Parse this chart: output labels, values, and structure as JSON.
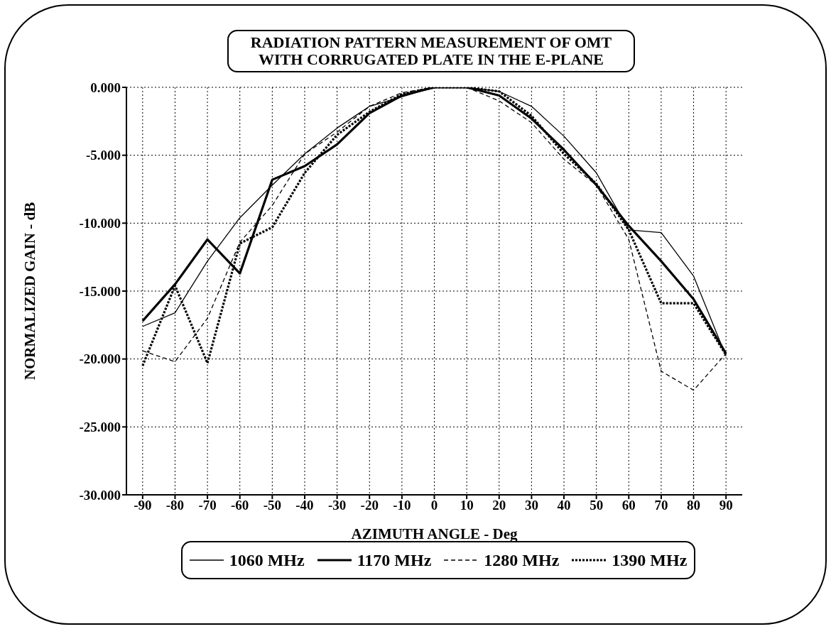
{
  "chart_data": {
    "type": "line",
    "title": "RADIATION PATTERN MEASUREMENT OF OMT\nWITH CORRUGATED PLATE IN THE E-PLANE",
    "xlabel": "AZIMUTH ANGLE - Deg",
    "ylabel": "NORMALIZED GAIN - dB",
    "x": [
      -90,
      -80,
      -70,
      -60,
      -50,
      -40,
      -30,
      -20,
      -10,
      0,
      10,
      20,
      30,
      40,
      50,
      60,
      70,
      80,
      90
    ],
    "series": [
      {
        "name": "1060 MHz",
        "color": "#000000",
        "line_style": "solid",
        "values": [
          -17.6,
          -16.6,
          -12.8,
          -9.6,
          -7.2,
          -4.9,
          -3.0,
          -1.4,
          -0.7,
          0,
          0,
          -0.3,
          -1.4,
          -3.6,
          -6.3,
          -10.5,
          -10.7,
          -13.9,
          -19.8
        ]
      },
      {
        "name": "1170 MHz",
        "color": "#000000",
        "line_style": "solid",
        "values": [
          -17.2,
          -14.5,
          -11.2,
          -13.7,
          -6.8,
          -5.8,
          -4.2,
          -1.9,
          -0.6,
          0,
          0,
          -0.6,
          -2.3,
          -4.6,
          -7.2,
          -10.2,
          -12.8,
          -15.6,
          -19.6
        ]
      },
      {
        "name": "1280 MHz",
        "color": "#000000",
        "line_style": "dashed",
        "values": [
          -19.4,
          -20.2,
          -17.0,
          -11.4,
          -8.7,
          -4.9,
          -3.3,
          -1.4,
          -0.4,
          0,
          0,
          -1.0,
          -2.6,
          -5.3,
          -7.2,
          -11.2,
          -20.9,
          -22.3,
          -19.6
        ]
      },
      {
        "name": "1390 MHz",
        "color": "#000000",
        "line_style": "dotted",
        "values": [
          -20.5,
          -14.6,
          -20.3,
          -11.5,
          -10.3,
          -6.3,
          -3.5,
          -1.8,
          -0.5,
          0,
          0,
          -0.3,
          -2.1,
          -4.9,
          -7.1,
          -10.5,
          -15.9,
          -15.9,
          -19.7
        ]
      }
    ],
    "xlim": [
      -95,
      95
    ],
    "xticks": [
      -90,
      -80,
      -70,
      -60,
      -50,
      -40,
      -30,
      -20,
      -10,
      0,
      10,
      20,
      30,
      40,
      50,
      60,
      70,
      80,
      90
    ],
    "ylim": [
      -30,
      0
    ],
    "yticks": [
      {
        "value": 0,
        "label": "0.000"
      },
      {
        "value": -5,
        "label": "-5.000"
      },
      {
        "value": -10,
        "label": "-10.000"
      },
      {
        "value": -15,
        "label": "-15.000"
      },
      {
        "value": -20,
        "label": "-20.000"
      },
      {
        "value": -25,
        "label": "-25.000"
      },
      {
        "value": -30,
        "label": "-30.000"
      }
    ],
    "grid": true,
    "legend": "bottom",
    "marker": "none"
  }
}
